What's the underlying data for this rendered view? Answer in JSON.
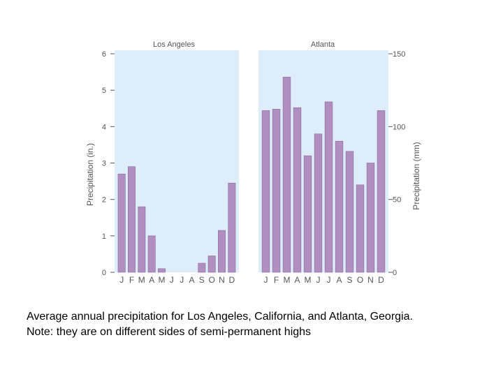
{
  "chart_data": [
    {
      "type": "bar",
      "title": "Los Angeles",
      "ylabel": "Precipitation (in.)",
      "ylim": [
        0,
        6
      ],
      "yticks": [
        "0",
        "1",
        "2",
        "3",
        "4",
        "5",
        "6"
      ],
      "categories": [
        "J",
        "F",
        "M",
        "A",
        "M",
        "J",
        "J",
        "A",
        "S",
        "O",
        "N",
        "D"
      ],
      "values": [
        2.7,
        2.9,
        1.8,
        1.0,
        0.1,
        0.0,
        0.0,
        0.0,
        0.25,
        0.45,
        1.15,
        2.45
      ]
    },
    {
      "type": "bar",
      "title": "Atlanta",
      "ylabel": "Precipitation (mm)",
      "ylim": [
        0,
        150
      ],
      "yticks": [
        "0",
        "50",
        "100",
        "150"
      ],
      "categories": [
        "J",
        "F",
        "M",
        "A",
        "M",
        "J",
        "J",
        "A",
        "S",
        "O",
        "N",
        "D"
      ],
      "values": [
        111,
        112,
        134,
        113,
        80,
        95,
        117,
        90,
        83,
        60,
        75,
        111
      ]
    }
  ],
  "colors": {
    "panel_bg": "#ddeefa",
    "bar_fill": "#b08ec0",
    "bar_stroke": "#8e6aa2",
    "axis_text": "#555555"
  },
  "caption": {
    "line1": "Average annual precipitation for Los Angeles, California, and Atlanta, Georgia.",
    "line2": "Note: they are on different sides of semi-permanent highs"
  }
}
